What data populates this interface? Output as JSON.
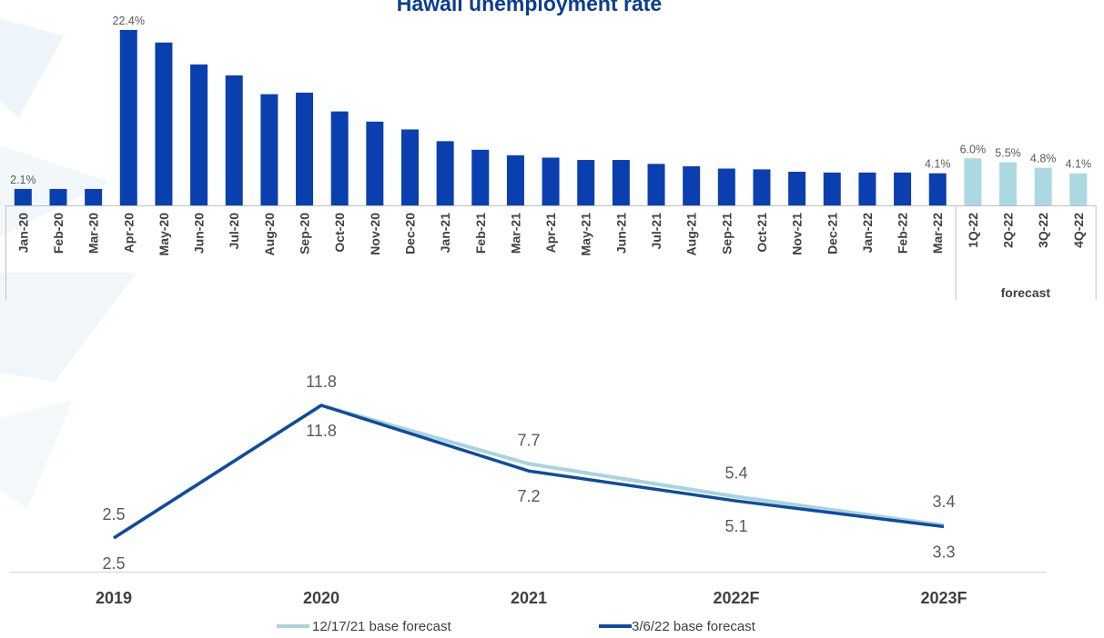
{
  "colors": {
    "actual_bar": "#0a3fb0",
    "forecast_bar": "#acd8e1",
    "line_dec": "#a8d3df",
    "line_mar": "#0f4c9e",
    "title": "#0c3d91",
    "text": "#595959",
    "axis": "#bfbfbf"
  },
  "chart_data": [
    {
      "type": "bar",
      "title": "Hawaii unemployment rate",
      "categories": [
        "Jan-20",
        "Feb-20",
        "Mar-20",
        "Apr-20",
        "May-20",
        "Jun-20",
        "Jul-20",
        "Aug-20",
        "Sep-20",
        "Oct-20",
        "Nov-20",
        "Dec-20",
        "Jan-21",
        "Feb-21",
        "Mar-21",
        "Apr-21",
        "May-21",
        "Jun-21",
        "Jul-21",
        "Aug-21",
        "Sep-21",
        "Oct-21",
        "Nov-21",
        "Dec-21",
        "Jan-22",
        "Feb-22",
        "Mar-22",
        "1Q-22",
        "2Q-22",
        "3Q-22",
        "4Q-22"
      ],
      "values": [
        2.1,
        2.1,
        2.1,
        22.4,
        20.8,
        18.0,
        16.6,
        14.2,
        14.4,
        12.0,
        10.7,
        9.7,
        8.2,
        7.1,
        6.4,
        6.1,
        5.8,
        5.8,
        5.3,
        5.0,
        4.7,
        4.6,
        4.3,
        4.2,
        4.2,
        4.2,
        4.1,
        6.0,
        5.5,
        4.8,
        4.1
      ],
      "forecast_from_index": 27,
      "data_labels": {
        "0": "2.1%",
        "3": "22.4%",
        "26": "4.1%",
        "27": "6.0%",
        "28": "5.5%",
        "29": "4.8%",
        "30": "4.1%"
      },
      "group_label": "forecast",
      "ylim": [
        0,
        23
      ]
    },
    {
      "type": "line",
      "categories": [
        "2019",
        "2020",
        "2021",
        "2022F",
        "2023F"
      ],
      "series": [
        {
          "name": "12/17/21 base forecast",
          "values": [
            2.5,
            11.8,
            7.7,
            5.4,
            3.4
          ],
          "labels": [
            "2.5",
            "11.8",
            "7.7",
            "5.4",
            "3.4"
          ]
        },
        {
          "name": "3/6/22 base forecast",
          "values": [
            2.5,
            11.8,
            7.2,
            5.1,
            3.3
          ],
          "labels": [
            "2.5",
            "11.8",
            "7.2",
            "5.1",
            "3.3"
          ]
        }
      ],
      "ylim": [
        0,
        12
      ]
    }
  ]
}
